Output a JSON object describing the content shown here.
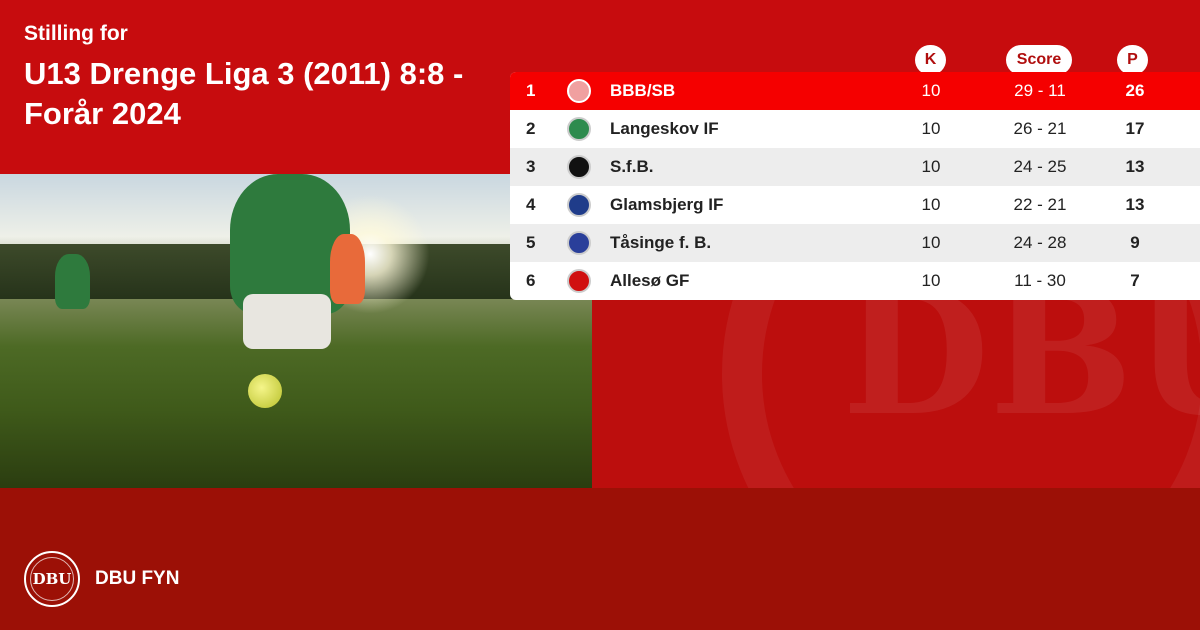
{
  "header": {
    "subtitle": "Stilling for",
    "title": "U13 Drenge Liga 3 (2011) 8:8 - Forår 2024"
  },
  "table": {
    "columns": {
      "k": "K",
      "score": "Score",
      "p": "P"
    },
    "rows": [
      {
        "pos": "1",
        "team": "BBB/SB",
        "k": "10",
        "score": "29 - 11",
        "p": "26",
        "logo_color": "#f0a0a0"
      },
      {
        "pos": "2",
        "team": "Langeskov IF",
        "k": "10",
        "score": "26 - 21",
        "p": "17",
        "logo_color": "#2e8b4e"
      },
      {
        "pos": "3",
        "team": "S.f.B.",
        "k": "10",
        "score": "24 - 25",
        "p": "13",
        "logo_color": "#111111"
      },
      {
        "pos": "4",
        "team": "Glamsbjerg IF",
        "k": "10",
        "score": "22 - 21",
        "p": "13",
        "logo_color": "#1f3c8a"
      },
      {
        "pos": "5",
        "team": "Tåsinge  f. B.",
        "k": "10",
        "score": "24 - 28",
        "p": "9",
        "logo_color": "#2a3f9a"
      },
      {
        "pos": "6",
        "team": "Allesø GF",
        "k": "10",
        "score": "11 - 30",
        "p": "7",
        "logo_color": "#d01010"
      }
    ]
  },
  "footer": {
    "brand": "DBU FYN",
    "logo_text": "DBU"
  },
  "colors": {
    "top": "#c70c0e",
    "bottom": "#9c1006",
    "highlight": "#f50000"
  }
}
